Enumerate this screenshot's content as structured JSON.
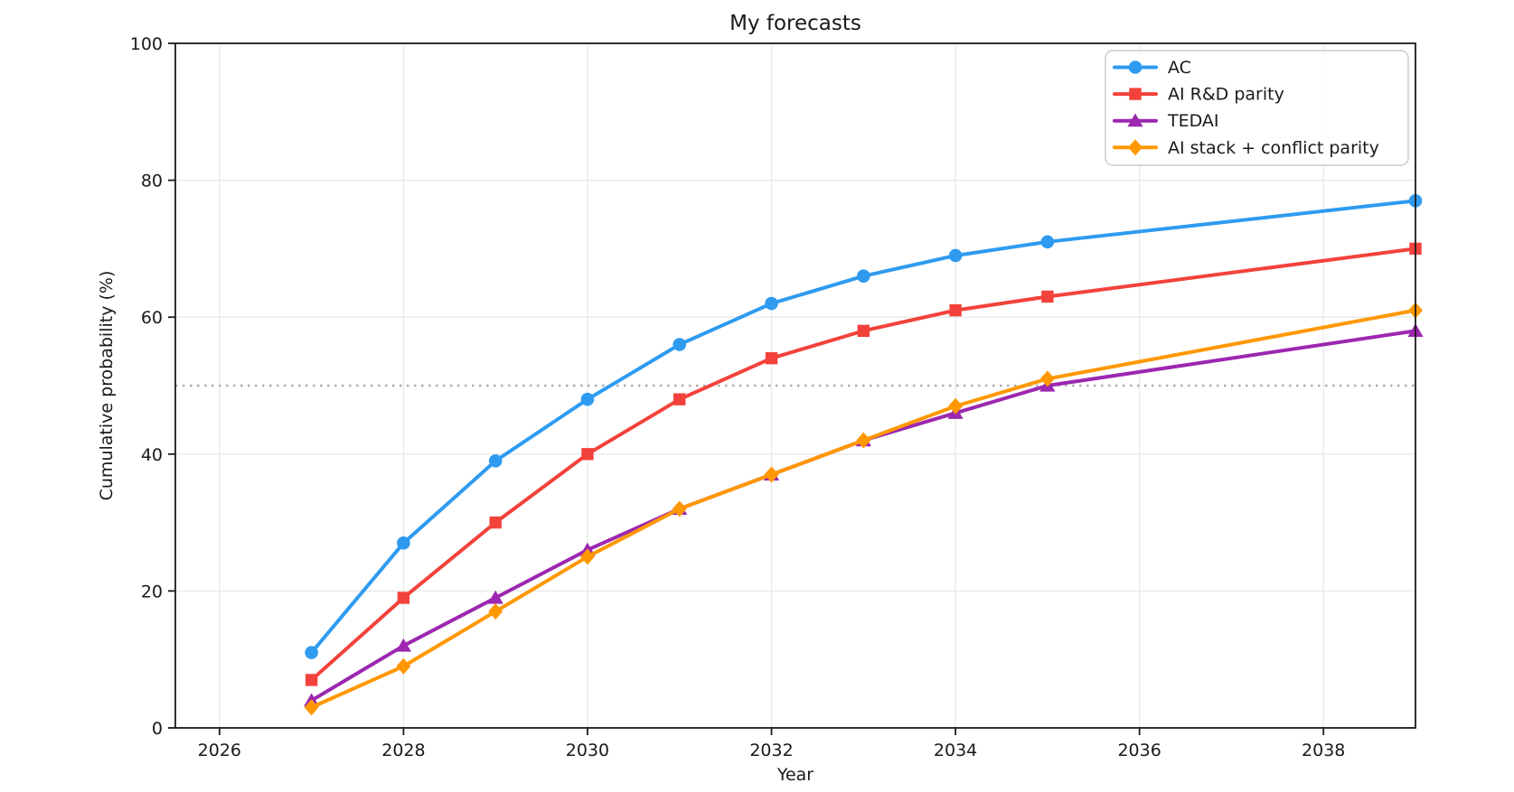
{
  "chart_data": {
    "type": "line",
    "title": "My forecasts",
    "xlabel": "Year",
    "ylabel": "Cumulative probability (%)",
    "x": [
      2027,
      2028,
      2029,
      2030,
      2031,
      2032,
      2033,
      2034,
      2035,
      2039
    ],
    "series": [
      {
        "name": "AC",
        "color": "#2E9BF0",
        "marker": "circle",
        "values": [
          11,
          27,
          39,
          48,
          56,
          62,
          66,
          69,
          71,
          77
        ]
      },
      {
        "name": "AI R&D parity",
        "color": "#F3423B",
        "marker": "square",
        "values": [
          7,
          19,
          30,
          40,
          48,
          54,
          58,
          61,
          63,
          70
        ]
      },
      {
        "name": "TEDAI",
        "color": "#9C27B0",
        "marker": "triangle",
        "values": [
          4,
          12,
          19,
          26,
          32,
          37,
          42,
          46,
          50,
          58
        ]
      },
      {
        "name": "AI stack + conflict parity",
        "color": "#FF9800",
        "marker": "diamond",
        "values": [
          3,
          9,
          17,
          25,
          32,
          37,
          42,
          47,
          51,
          61
        ]
      }
    ],
    "x_ticks": [
      2026,
      2028,
      2030,
      2032,
      2034,
      2036,
      2038
    ],
    "y_ticks": [
      0,
      20,
      40,
      60,
      80,
      100
    ],
    "xlim": [
      2025.52,
      2039
    ],
    "ylim": [
      0,
      100
    ],
    "grid": true,
    "legend_position": "upper right",
    "reference_line": {
      "y": 50,
      "style": "dotted",
      "color": "#adadad"
    },
    "colors": {
      "grid": "#e8e8e8",
      "spine": "#1a1a1a",
      "text": "#1a1a1a",
      "background": "#ffffff"
    }
  }
}
